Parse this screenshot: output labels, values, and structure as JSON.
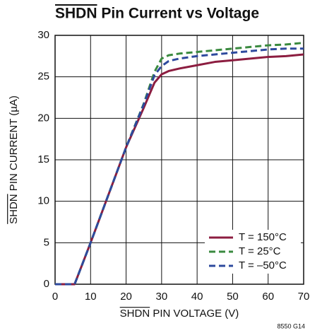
{
  "chart_data": {
    "type": "line",
    "title": "SHDN Pin Current vs Voltage",
    "xlabel": "SHDN PIN VOLTAGE (V)",
    "ylabel": "SHDN PIN CURRENT (µA)",
    "note": "8550 G14",
    "x": [
      0,
      5,
      5.5,
      10,
      20,
      25,
      28,
      30,
      32,
      35,
      40,
      45,
      50,
      55,
      60,
      65,
      70
    ],
    "series": [
      {
        "name": "T = 150°C",
        "color": "#8c1d40",
        "dashed": false,
        "values": [
          0,
          0,
          0,
          5,
          16.5,
          21.3,
          24.3,
          25.3,
          25.7,
          26,
          26.4,
          26.8,
          27,
          27.2,
          27.4,
          27.5,
          27.7
        ]
      },
      {
        "name": "T = 25°C",
        "color": "#3a8a3f",
        "dashed": true,
        "values": [
          0,
          0,
          0,
          5,
          16.5,
          21.8,
          25.6,
          27.2,
          27.6,
          27.8,
          28,
          28.2,
          28.4,
          28.6,
          28.8,
          28.9,
          29.1
        ]
      },
      {
        "name": "T = –50°C",
        "color": "#2e4a9e",
        "dashed": true,
        "values": [
          0,
          0,
          0,
          5,
          16.5,
          21.7,
          25.2,
          26.3,
          26.9,
          27.2,
          27.5,
          27.7,
          27.9,
          28.1,
          28.3,
          28.4,
          28.4
        ]
      }
    ],
    "xlim": [
      0,
      70
    ],
    "xticks": [
      0,
      10,
      20,
      30,
      40,
      50,
      60,
      70
    ],
    "ylim": [
      0,
      30
    ],
    "yticks": [
      0,
      5,
      10,
      15,
      20,
      25,
      30
    ],
    "grid": true,
    "legend": "lower right"
  }
}
